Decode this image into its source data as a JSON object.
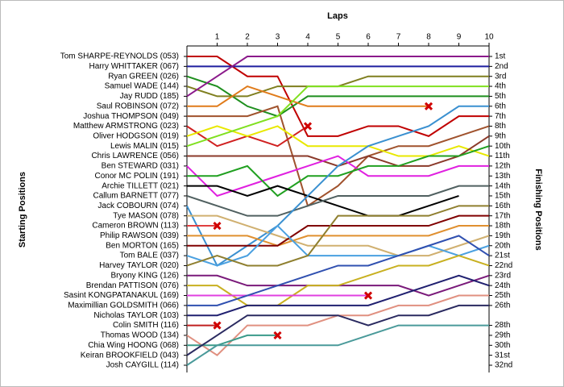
{
  "chart_data": {
    "type": "lap",
    "title": "Laps",
    "ylabel": "Starting Positions",
    "y2label": "Finishing Positions",
    "x": [
      0,
      1,
      2,
      3,
      4,
      5,
      6,
      7,
      8,
      9,
      10
    ],
    "xlim": [
      0,
      10
    ],
    "xticks": [
      1,
      2,
      3,
      4,
      5,
      6,
      7,
      8,
      9,
      10
    ],
    "ylim": [
      1,
      32
    ],
    "y2ticks": [
      {
        "value": 1,
        "label": "1st"
      },
      {
        "value": 2,
        "label": "2nd"
      },
      {
        "value": 3,
        "label": "3rd"
      },
      {
        "value": 4,
        "label": "4th"
      },
      {
        "value": 5,
        "label": "5th"
      },
      {
        "value": 6,
        "label": "6th"
      },
      {
        "value": 7,
        "label": "7th"
      },
      {
        "value": 8,
        "label": "8th"
      },
      {
        "value": 9,
        "label": "9th"
      },
      {
        "value": 10,
        "label": "10th"
      },
      {
        "value": 11,
        "label": "11th"
      },
      {
        "value": 12,
        "label": "12th"
      },
      {
        "value": 13,
        "label": "13th"
      },
      {
        "value": 14,
        "label": "14th"
      },
      {
        "value": 15,
        "label": "15th"
      },
      {
        "value": 16,
        "label": "16th"
      },
      {
        "value": 17,
        "label": "17th"
      },
      {
        "value": 18,
        "label": "18th"
      },
      {
        "value": 19,
        "label": "19th"
      },
      {
        "value": 20,
        "label": "20th"
      },
      {
        "value": 21,
        "label": "21st"
      },
      {
        "value": 22,
        "label": "22nd"
      },
      {
        "value": 23,
        "label": "23rd"
      },
      {
        "value": 24,
        "label": "24th"
      },
      {
        "value": 25,
        "label": "25th"
      },
      {
        "value": 26,
        "label": "26th"
      },
      {
        "value": 28,
        "label": "28th"
      },
      {
        "value": 29,
        "label": "29th"
      },
      {
        "value": 30,
        "label": "30th"
      },
      {
        "value": 31,
        "label": "31st"
      },
      {
        "value": 32,
        "label": "32nd"
      }
    ],
    "series": [
      {
        "name": "Tom SHARPE-REYNOLDS (053)",
        "color": "#c00000",
        "values": [
          1,
          1,
          3,
          3,
          9,
          9,
          8,
          8,
          9,
          7,
          7
        ]
      },
      {
        "name": "Harry WHITTAKER (067)",
        "color": "#1f1f9f",
        "values": [
          2,
          2,
          2,
          2,
          2,
          2,
          2,
          2,
          2,
          2,
          2
        ]
      },
      {
        "name": "Ryan GREEN (026)",
        "color": "#1e8f1e",
        "values": [
          3,
          4,
          6,
          7,
          5,
          5,
          5,
          5,
          5,
          5,
          5
        ]
      },
      {
        "name": "Samuel WADE (144)",
        "color": "#7f7f1f",
        "values": [
          4,
          5,
          5,
          4,
          4,
          4,
          3,
          3,
          3,
          3,
          3
        ]
      },
      {
        "name": "Jay RUDD (185)",
        "color": "#8b1a8b",
        "values": [
          5,
          3,
          1,
          1,
          1,
          1,
          1,
          1,
          1,
          1,
          1
        ]
      },
      {
        "name": "Saul ROBINSON (072)",
        "color": "#e07b1a",
        "values": [
          6,
          6,
          4,
          5,
          6,
          6,
          6,
          6,
          6,
          null,
          null
        ],
        "retired": true
      },
      {
        "name": "Joshua THOMPSON (049)",
        "color": "#a0522d",
        "values": [
          7,
          7,
          7,
          6,
          16,
          14,
          11,
          10,
          10,
          9,
          8
        ]
      },
      {
        "name": "Matthew ARMSTRONG (023)",
        "color": "#d02020",
        "values": [
          8,
          10,
          9,
          10,
          8,
          null,
          null,
          null,
          null,
          null,
          null
        ],
        "retired": true
      },
      {
        "name": "Oliver HODGSON (019)",
        "color": "#e8e800",
        "values": [
          9,
          8,
          9,
          8,
          10,
          10,
          10,
          11,
          11,
          10,
          11
        ]
      },
      {
        "name": "Lewis MALIN (015)",
        "color": "#80e020",
        "values": [
          10,
          9,
          8,
          7,
          4,
          4,
          4,
          4,
          4,
          4,
          4
        ]
      },
      {
        "name": "Chris LAWRENCE (056)",
        "color": "#8b3a2a",
        "values": [
          11,
          11,
          11,
          11,
          11,
          12,
          11,
          12,
          12,
          11,
          9
        ]
      },
      {
        "name": "Ben STEWARD (031)",
        "color": "#e020e0",
        "values": [
          12,
          15,
          14,
          13,
          12,
          11,
          13,
          13,
          13,
          12,
          12
        ]
      },
      {
        "name": "Conor MC POLIN (191)",
        "color": "#20a020",
        "values": [
          13,
          13,
          12,
          15,
          13,
          13,
          12,
          12,
          11,
          11,
          10
        ]
      },
      {
        "name": "Archie TILLETT (021)",
        "color": "#000000",
        "values": [
          14,
          14,
          15,
          14,
          15,
          16,
          17,
          17,
          16,
          15,
          null
        ]
      },
      {
        "name": "Callum BARNETT (077)",
        "color": "#506060",
        "values": [
          15,
          16,
          17,
          17,
          16,
          15,
          15,
          15,
          15,
          14,
          14
        ]
      },
      {
        "name": "Jack COBOURN (074)",
        "color": "#3a90d0",
        "values": [
          16,
          22,
          20,
          18,
          15,
          12,
          10,
          9,
          8,
          6,
          6
        ]
      },
      {
        "name": "Tye MASON (078)",
        "color": "#d0b070",
        "values": [
          17,
          17,
          18,
          19,
          20,
          20,
          20,
          21,
          21,
          20,
          19
        ]
      },
      {
        "name": "Cameron BROWN (113)",
        "color": "#e04040",
        "values": [
          18,
          18,
          null,
          null,
          null,
          null,
          null,
          null,
          null,
          null,
          null
        ],
        "retired": true
      },
      {
        "name": "Philip RAWSON (039)",
        "color": "#e09030",
        "values": [
          19,
          19,
          19,
          20,
          19,
          19,
          19,
          19,
          19,
          18,
          18
        ]
      },
      {
        "name": "Ben MORTON (165)",
        "color": "#800000",
        "values": [
          20,
          20,
          20,
          20,
          18,
          18,
          18,
          18,
          18,
          17,
          17
        ]
      },
      {
        "name": "Tom BALE (037)",
        "color": "#4aa0e0",
        "values": [
          21,
          22,
          21,
          18,
          21,
          21,
          21,
          21,
          20,
          21,
          20
        ]
      },
      {
        "name": "Harvey TAYLOR (020)",
        "color": "#8f7f2f",
        "values": [
          22,
          21,
          22,
          22,
          21,
          17,
          17,
          17,
          17,
          16,
          16
        ]
      },
      {
        "name": "Bryony KING (126)",
        "color": "#7a1a7a",
        "values": [
          23,
          23,
          24,
          24,
          24,
          24,
          24,
          24,
          25,
          24,
          23
        ]
      },
      {
        "name": "Brendan PATTISON (076)",
        "color": "#c8b020",
        "values": [
          24,
          24,
          26,
          26,
          24,
          24,
          23,
          22,
          22,
          21,
          22
        ]
      },
      {
        "name": "Sasint KONGPATANAKUL (169)",
        "color": "#e040e0",
        "values": [
          25,
          25,
          25,
          25,
          25,
          25,
          25,
          null,
          null,
          null,
          null
        ],
        "retired": true
      },
      {
        "name": "Maximillian GOLDSMITH (066)",
        "color": "#3050b0",
        "values": [
          26,
          26,
          25,
          24,
          23,
          22,
          22,
          21,
          20,
          19,
          21
        ]
      },
      {
        "name": "Nicholas TAYLOR (103)",
        "color": "#202070",
        "values": [
          27,
          27,
          26,
          26,
          26,
          26,
          26,
          25,
          24,
          23,
          24
        ]
      },
      {
        "name": "Colin SMITH (116)",
        "color": "#c02020",
        "values": [
          28,
          28,
          null,
          null,
          null,
          null,
          null,
          null,
          null,
          null,
          null
        ],
        "retired": true
      },
      {
        "name": "Thomas WOOD (134)",
        "color": "#e09080",
        "values": [
          29,
          31,
          28,
          28,
          28,
          27,
          27,
          26,
          26,
          25,
          25
        ]
      },
      {
        "name": "Chia Wing HOONG (068)",
        "color": "#3a9a8a",
        "values": [
          30,
          30,
          29,
          29,
          null,
          null,
          null,
          null,
          null,
          null,
          null
        ],
        "retired": true
      },
      {
        "name": "Keiran BROOKFIELD (043)",
        "color": "#2a2a60",
        "values": [
          31,
          29,
          27,
          27,
          27,
          27,
          28,
          27,
          27,
          26,
          26
        ]
      },
      {
        "name": "Josh CAYGILL (114)",
        "color": "#4a9a9a",
        "values": [
          32,
          30,
          30,
          30,
          30,
          30,
          29,
          28,
          28,
          28,
          28
        ]
      }
    ]
  }
}
